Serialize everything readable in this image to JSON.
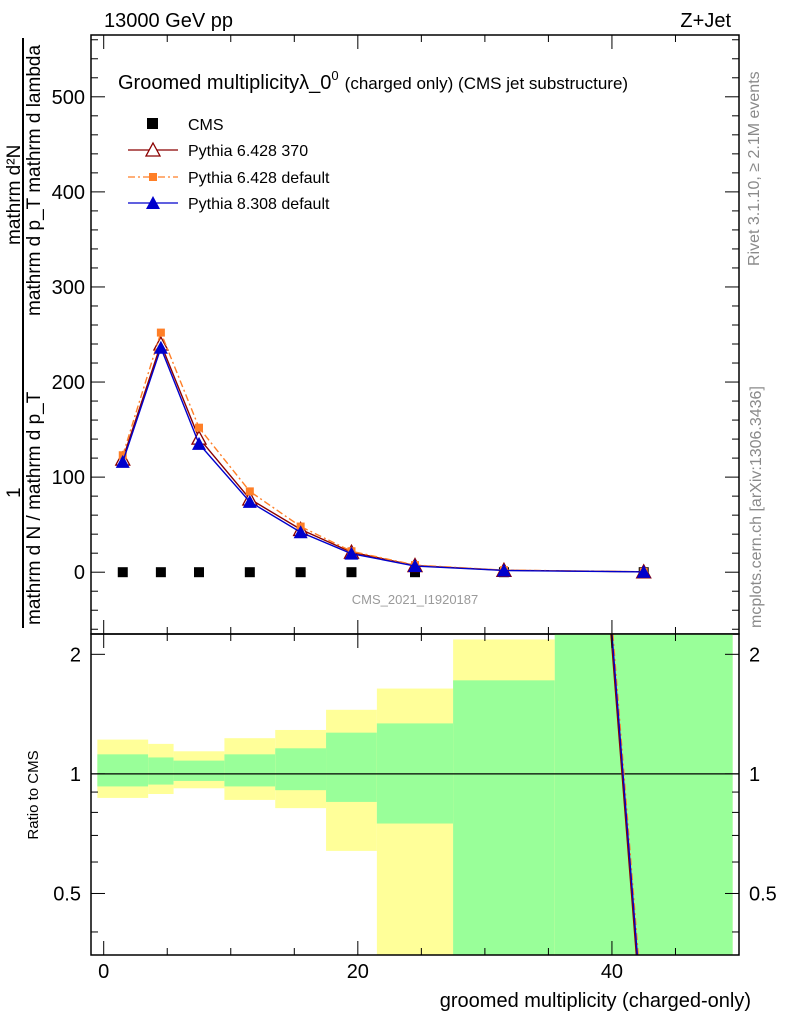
{
  "header": {
    "left": "13000 GeV pp",
    "right": "Z+Jet"
  },
  "side": {
    "rivet": "Rivet 3.1.10, ≥ 2.1M events",
    "mcplots": "mcplots.cern.ch [arXiv:1306.3436]"
  },
  "chart_data": [
    {
      "type": "line",
      "title": "Groomed multiplicityλ_0",
      "title_sup": "0",
      "subtitle": "(charged only) (CMS jet substructure)",
      "ylabel_numer": "mathrm d²N",
      "ylabel_denom": "mathrm d p_T mathrm d lambda",
      "ylabel_prefix_numer": "1",
      "ylabel_prefix_denom": "mathrm d N / mathrm d p_T",
      "watermark": "CMS_2021_I1920187",
      "xlim": [
        -1,
        50
      ],
      "ylim": [
        -65,
        565
      ],
      "yticks": [
        0,
        100,
        200,
        300,
        400,
        500
      ],
      "grid": false,
      "legend_position": "top-left",
      "x": [
        1.5,
        4.5,
        7.5,
        11.5,
        15.5,
        19.5,
        24.5,
        31.5,
        42.5
      ],
      "series": [
        {
          "name": "CMS",
          "color": "#000000",
          "marker": "square",
          "line": "none",
          "values": [
            0,
            0,
            0,
            0,
            0,
            0,
            0,
            0,
            0
          ]
        },
        {
          "name": "Pythia 6.428 370",
          "color": "#8b0000",
          "marker": "open-triangle",
          "line": "solid",
          "values": [
            119,
            240,
            141,
            77,
            45,
            21,
            7,
            2,
            0.4
          ]
        },
        {
          "name": "Pythia 6.428 default",
          "color": "#ff7f27",
          "marker": "square-small",
          "line": "dashdot",
          "values": [
            123,
            252,
            152,
            85,
            48,
            22,
            7.5,
            2.2,
            0.4
          ]
        },
        {
          "name": "Pythia 8.308 default",
          "color": "#0000cc",
          "marker": "triangle",
          "line": "solid",
          "values": [
            116,
            236,
            135,
            74,
            42,
            19.5,
            6.5,
            1.8,
            0.3
          ]
        }
      ]
    },
    {
      "type": "line",
      "ylabel": "Ratio to CMS",
      "xlabel": "groomed multiplicity (charged-only)",
      "xlim": [
        -1,
        50
      ],
      "ylim": [
        0.35,
        2.25
      ],
      "yticks": [
        0.5,
        1,
        2
      ],
      "ytick_labels": [
        "0.5",
        "1",
        "2"
      ],
      "xticks": [
        0,
        20,
        40
      ],
      "xtick_labels": [
        "0",
        "20",
        "40"
      ],
      "bands": [
        {
          "x0": -0.5,
          "x1": 3.5,
          "yellow": [
            0.87,
            1.22
          ],
          "green": [
            0.93,
            1.12
          ]
        },
        {
          "x0": 3.5,
          "x1": 5.5,
          "yellow": [
            0.89,
            1.19
          ],
          "green": [
            0.94,
            1.1
          ]
        },
        {
          "x0": 5.5,
          "x1": 9.5,
          "yellow": [
            0.92,
            1.14
          ],
          "green": [
            0.96,
            1.08
          ]
        },
        {
          "x0": 9.5,
          "x1": 13.5,
          "yellow": [
            0.86,
            1.23
          ],
          "green": [
            0.93,
            1.12
          ]
        },
        {
          "x0": 13.5,
          "x1": 17.5,
          "yellow": [
            0.82,
            1.29
          ],
          "green": [
            0.91,
            1.16
          ]
        },
        {
          "x0": 17.5,
          "x1": 21.5,
          "yellow": [
            0.64,
            1.45
          ],
          "green": [
            0.85,
            1.27
          ]
        },
        {
          "x0": 21.5,
          "x1": 27.5,
          "yellow": [
            0.35,
            1.64
          ],
          "green": [
            0.75,
            1.34
          ]
        },
        {
          "x0": 27.5,
          "x1": 35.5,
          "yellow": [
            0.35,
            2.18
          ],
          "green": [
            0.35,
            1.72
          ]
        },
        {
          "x0": 35.5,
          "x1": 49.5,
          "yellow": [
            0.35,
            2.25
          ],
          "green": [
            0.35,
            2.25
          ]
        }
      ],
      "ratio_line": {
        "x": [
          40,
          42
        ],
        "y": [
          2.25,
          0.35
        ]
      }
    }
  ]
}
